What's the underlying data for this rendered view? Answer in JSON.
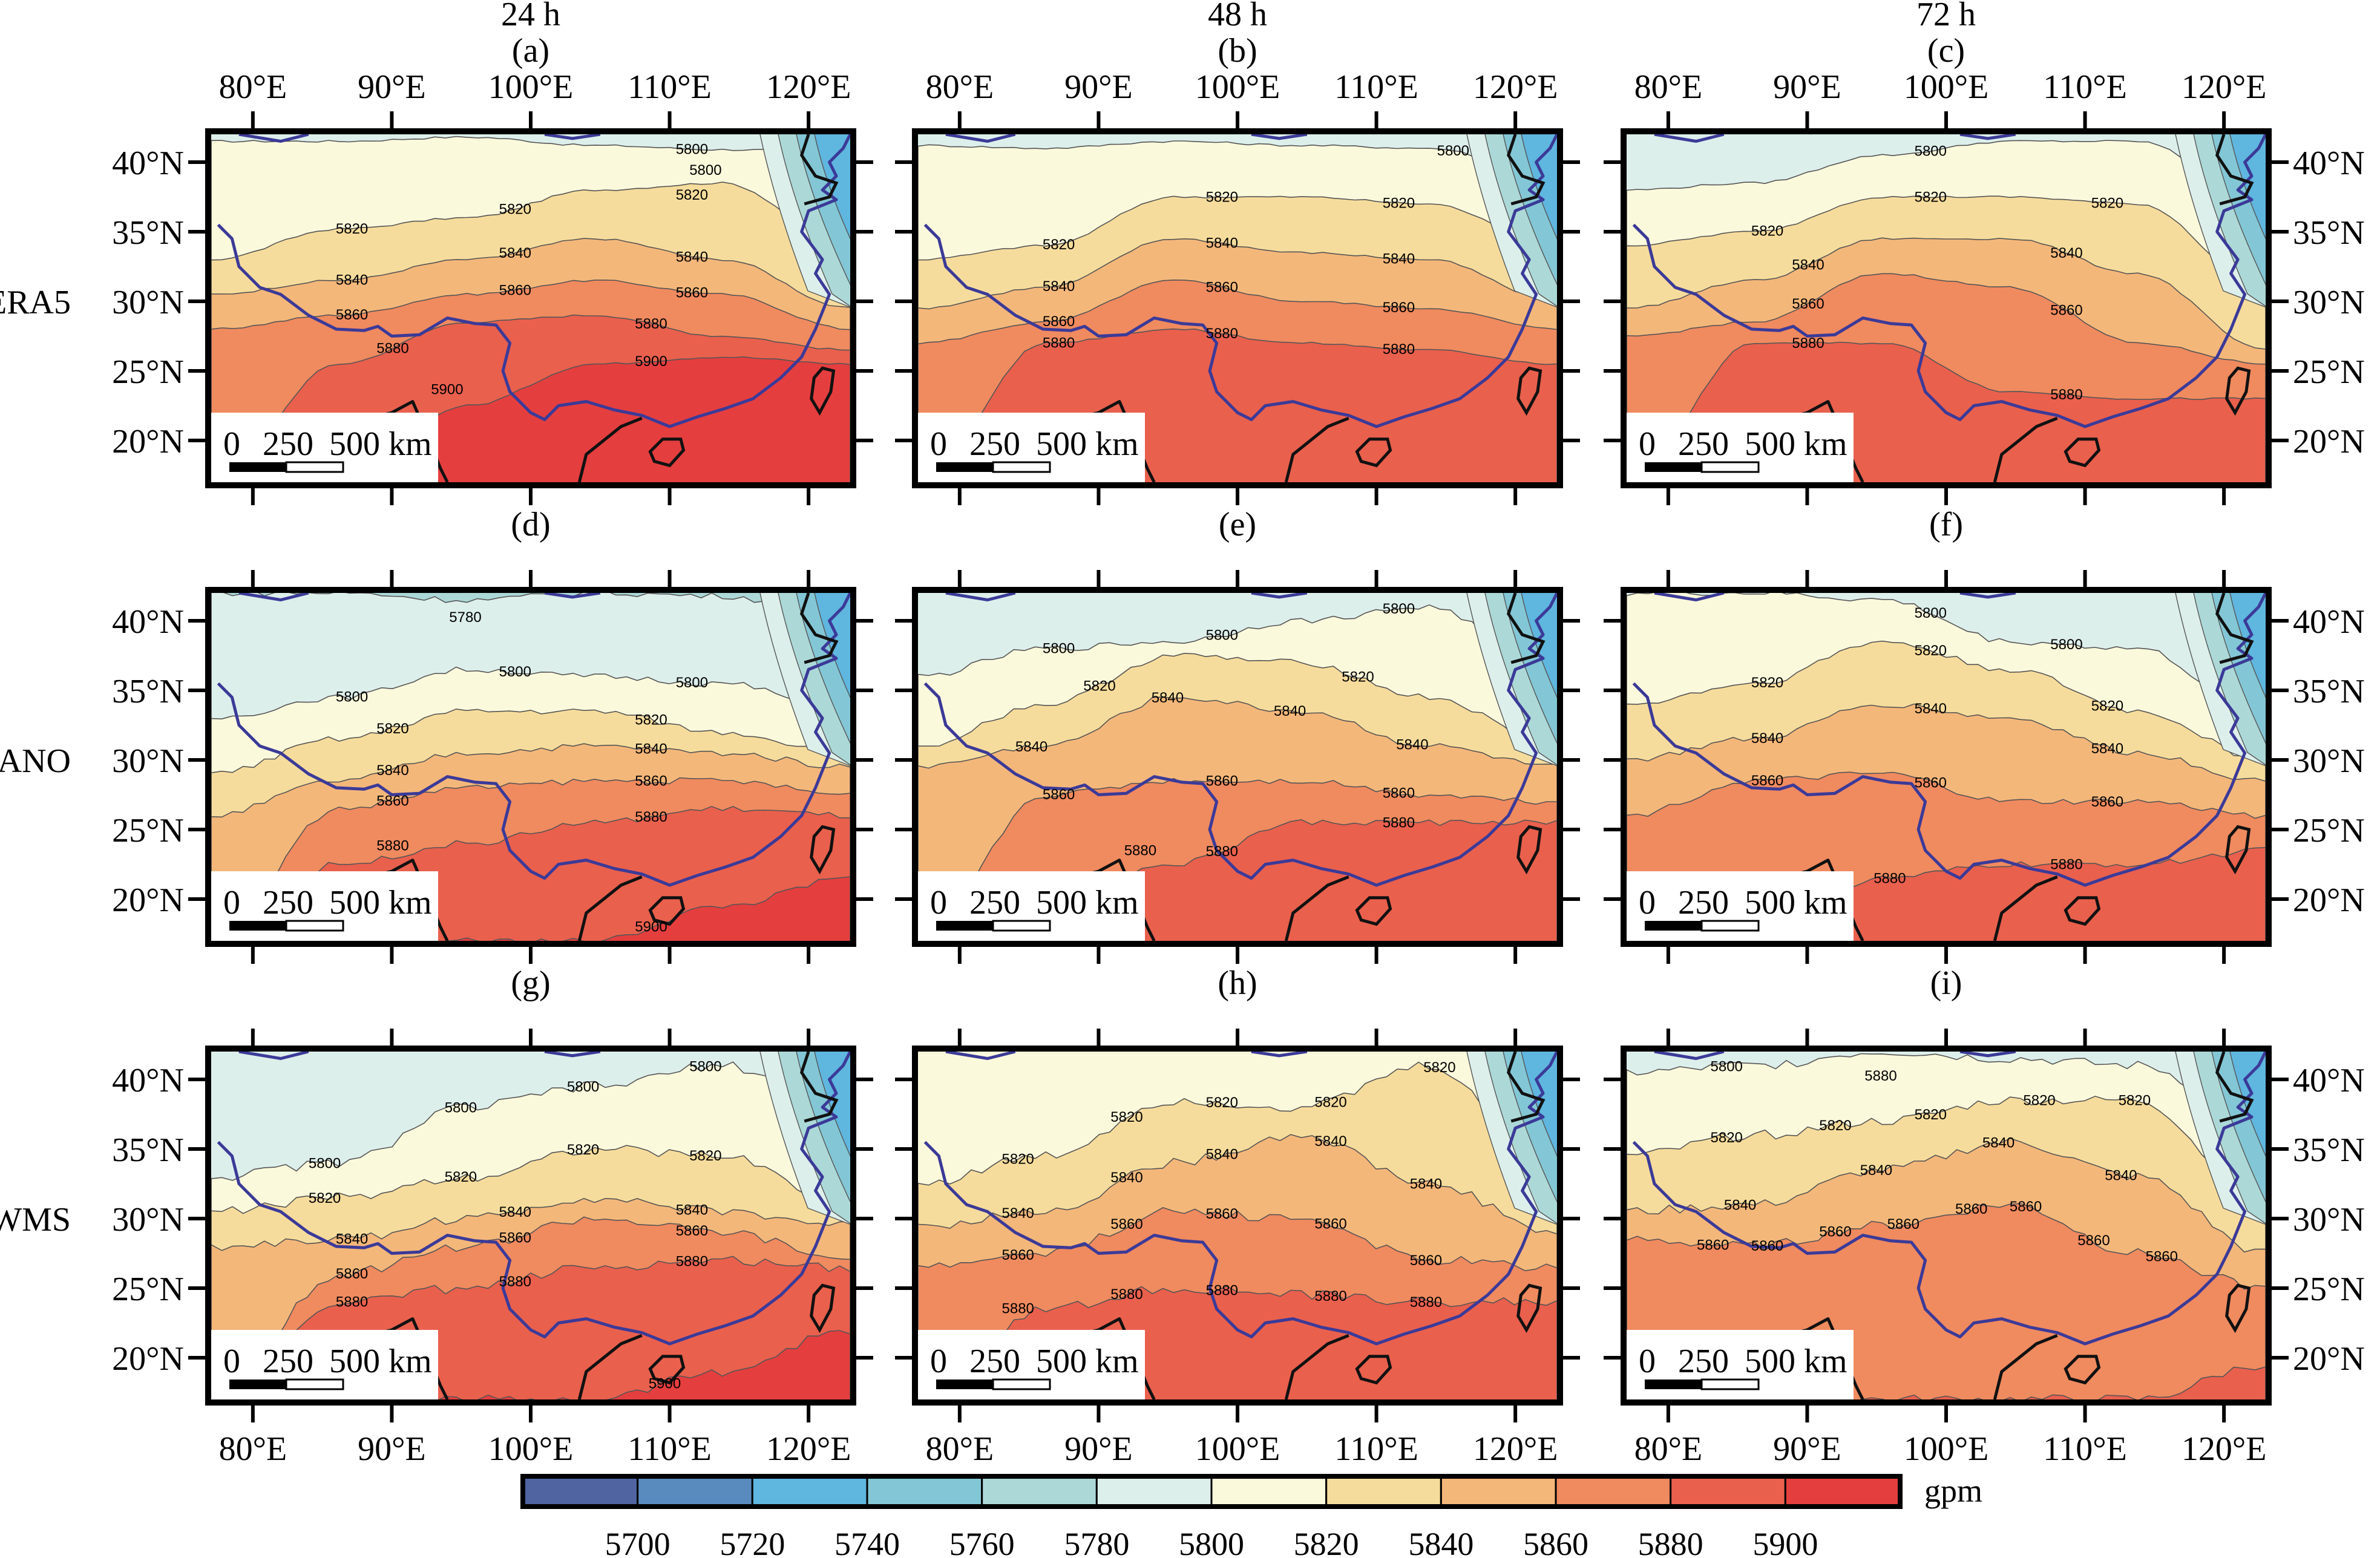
{
  "chart_data": {
    "type": "heatmap",
    "subtype": "filled-contour-map-grid",
    "variable": "500 hPa geopotential height",
    "units": "gpm",
    "columns": [
      "24 h",
      "48 h",
      "72 h"
    ],
    "rows": [
      "ERA5",
      "ANO",
      "SWMS"
    ],
    "x_ticks": [
      "80°E",
      "90°E",
      "100°E",
      "110°E",
      "120°E"
    ],
    "x_tick_values": [
      80,
      90,
      100,
      110,
      120
    ],
    "y_ticks": [
      "40°N",
      "35°N",
      "30°N",
      "25°N",
      "20°N"
    ],
    "y_tick_values": [
      40,
      35,
      30,
      25,
      20
    ],
    "xlim": [
      77,
      123
    ],
    "ylim": [
      17,
      42
    ],
    "scale_bar": {
      "labels": [
        "0",
        "250",
        "500 km"
      ]
    },
    "colorbar": {
      "label": "gpm",
      "ticks": [
        "5700",
        "5720",
        "5740",
        "5760",
        "5780",
        "5800",
        "5820",
        "5840",
        "5860",
        "5880",
        "5900"
      ],
      "levels": [
        5700,
        5720,
        5740,
        5760,
        5780,
        5800,
        5820,
        5840,
        5860,
        5880,
        5900
      ],
      "colors": [
        "#4f64a0",
        "#5a8bbf",
        "#5fb6df",
        "#83c7d6",
        "#acd9d8",
        "#ddefeb",
        "#fbf9dc",
        "#f6dc9c",
        "#f4b77a",
        "#f08a5f",
        "#e9604d",
        "#e53e3f"
      ]
    },
    "panels": [
      {
        "id": "a",
        "label": "(a)",
        "row": "ERA5",
        "lead": "24 h",
        "contour_labels": [
          "5800",
          "5800",
          "5820",
          "5820",
          "5820",
          "5840",
          "5840",
          "5840",
          "5860",
          "5860",
          "5860",
          "5880",
          "5880",
          "5900",
          "5900"
        ],
        "bands": [
          {
            "level": 5800,
            "lat": [
              41.5,
              41.5,
              41.8,
              41.2,
              40.9,
              40.8
            ]
          },
          {
            "level": 5820,
            "lat": [
              33.0,
              35.2,
              36.0,
              38.0,
              38.5,
              34.0
            ]
          },
          {
            "level": 5840,
            "lat": [
              30.5,
              31.5,
              33.0,
              34.5,
              33.0,
              29.5
            ]
          },
          {
            "level": 5860,
            "lat": [
              28.0,
              29.0,
              30.5,
              31.5,
              30.5,
              28.0
            ]
          },
          {
            "level": 5880,
            "lat": [
              17.0,
              25.5,
              28.5,
              29.0,
              27.5,
              26.5
            ]
          },
          {
            "level": 5900,
            "lat": [
              17.0,
              17.0,
              22.5,
              25.5,
              26.0,
              25.5
            ]
          }
        ]
      },
      {
        "id": "b",
        "label": "(b)",
        "row": "ERA5",
        "lead": "48 h",
        "contour_labels": [
          "5800",
          "5820",
          "5820",
          "5820",
          "5840",
          "5840",
          "5840",
          "5860",
          "5860",
          "5860",
          "5880",
          "5880",
          "5880"
        ],
        "bands": [
          {
            "level": 5800,
            "lat": [
              41.2,
              41.0,
              41.5,
              41.2,
              41.0,
              39.0
            ]
          },
          {
            "level": 5820,
            "lat": [
              33.0,
              34.0,
              37.5,
              37.5,
              37.0,
              34.0
            ]
          },
          {
            "level": 5840,
            "lat": [
              29.5,
              31.0,
              34.5,
              33.5,
              33.0,
              30.0
            ]
          },
          {
            "level": 5860,
            "lat": [
              27.0,
              28.5,
              31.5,
              30.0,
              29.5,
              28.0
            ]
          },
          {
            "level": 5880,
            "lat": [
              17.0,
              27.0,
              28.0,
              27.0,
              26.5,
              25.5
            ]
          }
        ]
      },
      {
        "id": "c",
        "label": "(c)",
        "row": "ERA5",
        "lead": "72 h",
        "contour_labels": [
          "5800",
          "5820",
          "5820",
          "5820",
          "5840",
          "5840",
          "5860",
          "5860",
          "5880",
          "5880"
        ],
        "bands": [
          {
            "level": 5800,
            "lat": [
              38.0,
              38.5,
              40.5,
              41.5,
              41.5,
              37.0
            ]
          },
          {
            "level": 5820,
            "lat": [
              34.0,
              35.0,
              37.5,
              37.5,
              37.0,
              31.0
            ]
          },
          {
            "level": 5840,
            "lat": [
              29.5,
              31.5,
              34.5,
              34.5,
              32.0,
              26.5
            ]
          },
          {
            "level": 5860,
            "lat": [
              27.5,
              28.5,
              32.0,
              31.0,
              27.0,
              25.5
            ]
          },
          {
            "level": 5880,
            "lat": [
              17.0,
              27.0,
              27.0,
              23.5,
              23.0,
              23.0
            ]
          }
        ]
      },
      {
        "id": "d",
        "label": "(d)",
        "row": "ANO",
        "lead": "24 h",
        "contour_labels": [
          "5780",
          "5800",
          "5800",
          "5800",
          "5820",
          "5820",
          "5840",
          "5840",
          "5860",
          "5860",
          "5880",
          "5880",
          "5900"
        ],
        "bands": [
          {
            "level": 5780,
            "lat": [
              42.0,
              42.0,
              41.5,
              42.0,
              41.8,
              40.0
            ]
          },
          {
            "level": 5800,
            "lat": [
              33.0,
              34.5,
              36.5,
              36.0,
              35.5,
              33.5
            ]
          },
          {
            "level": 5820,
            "lat": [
              29.0,
              31.5,
              33.5,
              33.5,
              32.0,
              30.5
            ]
          },
          {
            "level": 5840,
            "lat": [
              26.0,
              28.5,
              30.5,
              31.0,
              30.5,
              29.5
            ]
          },
          {
            "level": 5860,
            "lat": [
              17.0,
              26.5,
              28.0,
              28.5,
              28.5,
              27.5
            ]
          },
          {
            "level": 5880,
            "lat": [
              17.0,
              22.5,
              24.0,
              25.5,
              26.5,
              26.0
            ]
          },
          {
            "level": 5900,
            "lat": [
              17.0,
              17.0,
              17.0,
              17.0,
              19.5,
              21.5
            ]
          }
        ]
      },
      {
        "id": "e",
        "label": "(e)",
        "row": "ANO",
        "lead": "48 h",
        "contour_labels": [
          "5800",
          "5800",
          "5800",
          "5820",
          "5820",
          "5840",
          "5840",
          "5840",
          "5840",
          "5860",
          "5860",
          "5860",
          "5880",
          "5880",
          "5880"
        ],
        "bands": [
          {
            "level": 5800,
            "lat": [
              36.0,
              38.0,
              38.5,
              40.0,
              41.0,
              36.0
            ]
          },
          {
            "level": 5820,
            "lat": [
              31.0,
              34.0,
              37.5,
              37.0,
              34.5,
              31.0
            ]
          },
          {
            "level": 5840,
            "lat": [
              29.5,
              31.0,
              34.5,
              33.5,
              31.0,
              29.5
            ]
          },
          {
            "level": 5860,
            "lat": [
              17.0,
              27.5,
              28.5,
              28.5,
              27.5,
              27.0
            ]
          },
          {
            "level": 5880,
            "lat": [
              17.0,
              19.5,
              22.5,
              25.5,
              25.5,
              25.5
            ]
          }
        ]
      },
      {
        "id": "f",
        "label": "(f)",
        "row": "ANO",
        "lead": "72 h",
        "contour_labels": [
          "5800",
          "5800",
          "5820",
          "5820",
          "5820",
          "5840",
          "5840",
          "5840",
          "5860",
          "5860",
          "5860",
          "5880",
          "5880"
        ],
        "bands": [
          {
            "level": 5800,
            "lat": [
              42.0,
              42.0,
              41.5,
              38.5,
              38.0,
              33.0
            ]
          },
          {
            "level": 5820,
            "lat": [
              34.0,
              35.5,
              38.5,
              36.5,
              33.5,
              30.0
            ]
          },
          {
            "level": 5840,
            "lat": [
              30.0,
              31.5,
              34.0,
              33.0,
              30.5,
              28.5
            ]
          },
          {
            "level": 5860,
            "lat": [
              26.0,
              28.5,
              29.0,
              27.0,
              27.0,
              26.0
            ]
          },
          {
            "level": 5880,
            "lat": [
              17.0,
              17.0,
              21.5,
              22.5,
              22.5,
              23.5
            ]
          }
        ]
      },
      {
        "id": "g",
        "label": "(g)",
        "row": "SWMS",
        "lead": "24 h",
        "contour_labels": [
          "5800",
          "5800",
          "5800",
          "5800",
          "5820",
          "5820",
          "5820",
          "5820",
          "5840",
          "5840",
          "5840",
          "5860",
          "5860",
          "5860",
          "5880",
          "5880",
          "5880",
          "5900"
        ],
        "bands": [
          {
            "level": 5800,
            "lat": [
              33.0,
              34.0,
              38.0,
              39.5,
              41.0,
              38.0
            ]
          },
          {
            "level": 5820,
            "lat": [
              30.5,
              31.5,
              33.0,
              35.0,
              34.5,
              31.0
            ]
          },
          {
            "level": 5840,
            "lat": [
              28.0,
              28.5,
              30.0,
              31.5,
              30.5,
              29.5
            ]
          },
          {
            "level": 5860,
            "lat": [
              17.0,
              26.0,
              28.0,
              30.0,
              29.0,
              27.0
            ]
          },
          {
            "level": 5880,
            "lat": [
              17.0,
              24.0,
              25.0,
              26.5,
              27.0,
              26.5
            ]
          },
          {
            "level": 5900,
            "lat": [
              17.0,
              17.0,
              17.0,
              17.0,
              19.0,
              22.0
            ]
          }
        ]
      },
      {
        "id": "h",
        "label": "(h)",
        "row": "SWMS",
        "lead": "48 h",
        "contour_labels": [
          "5820",
          "5820",
          "5820",
          "5820",
          "5820",
          "5840",
          "5840",
          "5840",
          "5840",
          "5840",
          "5860",
          "5860",
          "5860",
          "5860",
          "5860",
          "5880",
          "5880",
          "5880",
          "5880",
          "5880"
        ],
        "bands": [
          {
            "level": 5820,
            "lat": [
              32.5,
              34.5,
              38.5,
              38.0,
              41.0,
              33.0
            ]
          },
          {
            "level": 5840,
            "lat": [
              29.5,
              30.5,
              34.0,
              36.0,
              32.5,
              29.0
            ]
          },
          {
            "level": 5860,
            "lat": [
              26.5,
              27.5,
              30.5,
              30.0,
              27.0,
              26.5
            ]
          },
          {
            "level": 5880,
            "lat": [
              17.0,
              23.5,
              25.0,
              24.5,
              24.0,
              24.0
            ]
          }
        ]
      },
      {
        "id": "i",
        "label": "(i)",
        "row": "SWMS",
        "lead": "72 h",
        "contour_labels": [
          "5800",
          "5820",
          "5820",
          "5820",
          "5820",
          "5820",
          "5840",
          "5840",
          "5840",
          "5840",
          "5860",
          "5860",
          "5860",
          "5860",
          "5860",
          "5860",
          "5860",
          "5860",
          "5880"
        ],
        "bands": [
          {
            "level": 5800,
            "lat": [
              40.5,
              41.0,
              42.0,
              41.5,
              41.0,
              37.0
            ]
          },
          {
            "level": 5820,
            "lat": [
              34.5,
              36.0,
              37.0,
              38.5,
              38.5,
              31.0
            ]
          },
          {
            "level": 5840,
            "lat": [
              30.5,
              31.0,
              33.5,
              35.5,
              33.0,
              27.5
            ]
          },
          {
            "level": 5860,
            "lat": [
              28.5,
              28.0,
              29.5,
              31.0,
              27.5,
              25.0
            ]
          },
          {
            "level": 5880,
            "lat": [
              17.0,
              17.0,
              17.0,
              17.0,
              17.0,
              19.5
            ]
          }
        ]
      }
    ]
  }
}
